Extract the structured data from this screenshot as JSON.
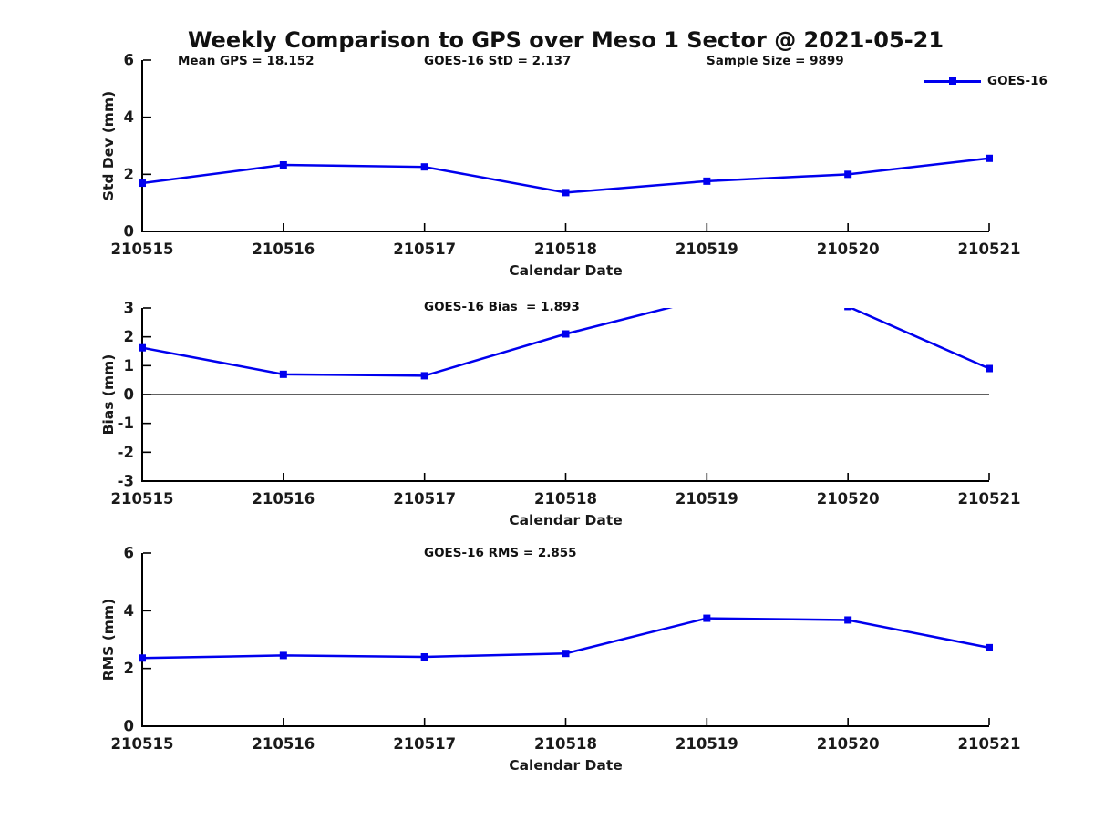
{
  "title": "Weekly Comparison to GPS over Meso 1 Sector @ 2021-05-21",
  "series_color": "#0000EE",
  "text_color": "#1a1a1a",
  "legend": {
    "label": "GOES-16",
    "marker": "square-icon"
  },
  "chart_data": [
    {
      "id": "std-dev-chart",
      "type": "line",
      "annotations": [
        "Mean GPS = 18.152",
        "GOES-16 StD = 2.137",
        "Sample Size = 9899"
      ],
      "categories": [
        "210515",
        "210516",
        "210517",
        "210518",
        "210519",
        "210520",
        "210521"
      ],
      "series": [
        {
          "name": "GOES-16",
          "values": [
            1.69,
            2.33,
            2.26,
            1.36,
            1.76,
            2.0,
            2.56
          ]
        }
      ],
      "xlabel": "Calendar Date",
      "ylabel": "Std Dev (mm)",
      "ylim": [
        0,
        6
      ],
      "yticks": [
        0,
        2,
        4,
        6
      ],
      "grid": false,
      "zero_line": false,
      "clip_to_axes": false,
      "legend_position": "top-right"
    },
    {
      "id": "bias-chart",
      "type": "line",
      "annotations": [
        "GOES-16 Bias  = 1.893"
      ],
      "categories": [
        "210515",
        "210516",
        "210517",
        "210518",
        "210519",
        "210520",
        "210521"
      ],
      "series": [
        {
          "name": "GOES-16",
          "values": [
            1.62,
            0.7,
            0.65,
            2.1,
            3.34,
            3.05,
            0.9
          ]
        }
      ],
      "xlabel": "Calendar Date",
      "ylabel": "Bias (mm)",
      "ylim": [
        -3,
        3
      ],
      "yticks": [
        -3,
        -2,
        -1,
        0,
        1,
        2,
        3
      ],
      "grid": false,
      "zero_line": true,
      "clip_to_axes": true,
      "legend_position": "none"
    },
    {
      "id": "rms-chart",
      "type": "line",
      "annotations": [
        "GOES-16 RMS = 2.855"
      ],
      "categories": [
        "210515",
        "210516",
        "210517",
        "210518",
        "210519",
        "210520",
        "210521"
      ],
      "series": [
        {
          "name": "GOES-16",
          "values": [
            2.36,
            2.45,
            2.4,
            2.52,
            3.74,
            3.68,
            2.72
          ]
        }
      ],
      "xlabel": "Calendar Date",
      "ylabel": "RMS (mm)",
      "ylim": [
        0,
        6
      ],
      "yticks": [
        0,
        2,
        4,
        6
      ],
      "grid": false,
      "zero_line": false,
      "clip_to_axes": false,
      "legend_position": "none"
    }
  ]
}
